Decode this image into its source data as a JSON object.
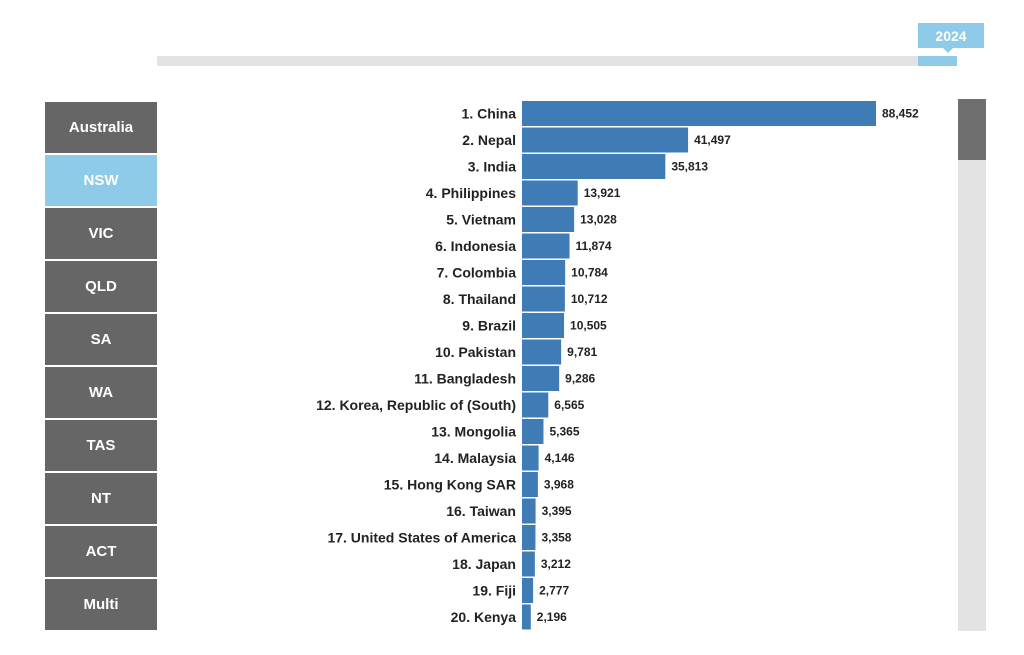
{
  "timeline": {
    "year": "2024"
  },
  "regions": [
    {
      "label": "Australia",
      "active": false
    },
    {
      "label": "NSW",
      "active": true
    },
    {
      "label": "VIC",
      "active": false
    },
    {
      "label": "QLD",
      "active": false
    },
    {
      "label": "SA",
      "active": false
    },
    {
      "label": "WA",
      "active": false
    },
    {
      "label": "TAS",
      "active": false
    },
    {
      "label": "NT",
      "active": false
    },
    {
      "label": "ACT",
      "active": false
    },
    {
      "label": "Multi",
      "active": false
    }
  ],
  "colors": {
    "bar": "#3f7cb6",
    "accent": "#8ecbe8",
    "tab": "#666666",
    "track": "#e3e3e3"
  },
  "chart_data": {
    "type": "bar",
    "orientation": "horizontal",
    "categories": [
      "1. China",
      "2. Nepal",
      "3. India",
      "4. Philippines",
      "5. Vietnam",
      "6. Indonesia",
      "7. Colombia",
      "8. Thailand",
      "9. Brazil",
      "10. Pakistan",
      "11. Bangladesh",
      "12. Korea, Republic of (South)",
      "13. Mongolia",
      "14. Malaysia",
      "15. Hong Kong SAR",
      "16. Taiwan",
      "17. United States of America",
      "18. Japan",
      "19. Fiji",
      "20. Kenya"
    ],
    "values": [
      88452,
      41497,
      35813,
      13921,
      13028,
      11874,
      10784,
      10712,
      10505,
      9781,
      9286,
      6565,
      5365,
      4146,
      3968,
      3395,
      3358,
      3212,
      2777,
      2196
    ],
    "value_labels": [
      "88,452",
      "41,497",
      "35,813",
      "13,921",
      "13,028",
      "11,874",
      "10,784",
      "10,712",
      "10,505",
      "9,781",
      "9,286",
      "6,565",
      "5,365",
      "4,146",
      "3,968",
      "3,395",
      "3,358",
      "3,212",
      "2,777",
      "2,196"
    ],
    "xlim": [
      0,
      88452
    ],
    "grid": false,
    "legend": "none"
  }
}
